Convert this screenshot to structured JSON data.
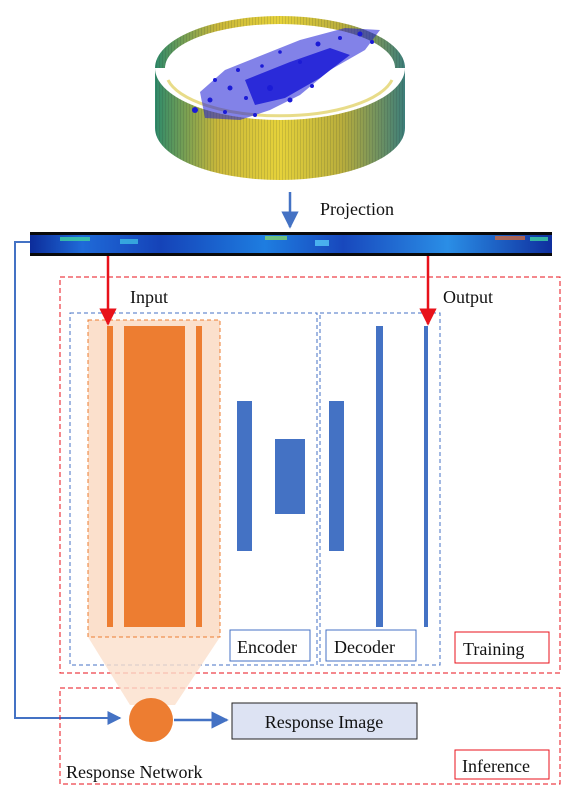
{
  "labels": {
    "projection": "Projection",
    "input": "Input",
    "output": "Output",
    "encoder": "Encoder",
    "decoder": "Decoder",
    "training": "Training",
    "inference": "Inference",
    "response_image": "Response Image",
    "response_network": "Response Network"
  },
  "colors": {
    "arrow_blue": "#4472c4",
    "arrow_red": "#e8121b",
    "layer_orange": "#ed7d31",
    "layer_blue": "#4472c4",
    "dashed_red": "#e8121b",
    "dashed_blue": "#4472c4",
    "highlight_fill": "#fbe0cc",
    "response_box_fill": "#dde3f3"
  },
  "icons": {
    "cylinder": "lidar-cylinder-projection-icon",
    "range_strip": "range-image-strip"
  }
}
